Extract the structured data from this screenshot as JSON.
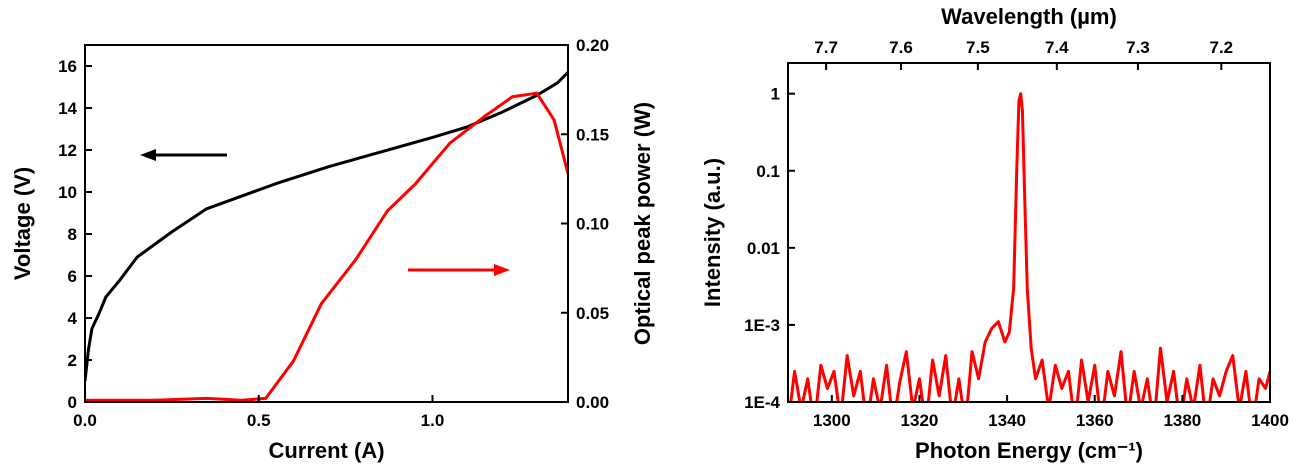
{
  "chart_data": [
    {
      "type": "line",
      "xlabel": "Current (A)",
      "ylabel": "Voltage (V)",
      "y2label": "Optical peak power (W)",
      "xlim": [
        0,
        1.39
      ],
      "xticks": [
        {
          "value": 0,
          "label": "0.0"
        },
        {
          "value": 0.5,
          "label": "0.5"
        },
        {
          "value": 1,
          "label": "1.0"
        }
      ],
      "ylim": [
        0,
        17
      ],
      "yticks": [
        0,
        2,
        4,
        6,
        8,
        10,
        12,
        14,
        16
      ],
      "y2lim": [
        0,
        0.2
      ],
      "y2ticks": [
        {
          "value": 0,
          "label": "0.00"
        },
        {
          "value": 0.05,
          "label": "0.05"
        },
        {
          "value": 0.1,
          "label": "0.10"
        },
        {
          "value": 0.15,
          "label": "0.15"
        },
        {
          "value": 0.2,
          "label": "0.20"
        }
      ],
      "series": [
        {
          "color": "#000000",
          "x": [
            0,
            0.01,
            0.02,
            0.04,
            0.06,
            0.1,
            0.15,
            0.2,
            0.25,
            0.35,
            0.45,
            0.55,
            0.7,
            0.85,
            1.0,
            1.1,
            1.2,
            1.3,
            1.36,
            1.39
          ],
          "values": [
            1,
            2.5,
            3.5,
            4.2,
            5,
            5.8,
            6.9,
            7.5,
            8.1,
            9.2,
            9.8,
            10.4,
            11.2,
            11.9,
            12.6,
            13.1,
            13.8,
            14.6,
            15.2,
            15.7
          ]
        },
        {
          "color": "#ff0000",
          "axis": "y2",
          "x": [
            0,
            0.2,
            0.35,
            0.45,
            0.52,
            0.6,
            0.68,
            0.78,
            0.87,
            0.95,
            1.05,
            1.15,
            1.23,
            1.3,
            1.35,
            1.39
          ],
          "values": [
            0.001,
            0.001,
            0.002,
            0.001,
            0.002,
            0.023,
            0.055,
            0.08,
            0.107,
            0.122,
            0.145,
            0.16,
            0.171,
            0.173,
            0.158,
            0.128
          ]
        }
      ]
    },
    {
      "type": "line",
      "xlabel": "Photon Energy (cm⁻¹)",
      "ylabel": "Intensity (a.u.)",
      "x2label": "Wavelength (µm)",
      "xlim": [
        1290,
        1400
      ],
      "xticks": [
        1300,
        1320,
        1340,
        1360,
        1380,
        1400
      ],
      "x2ticks": [
        7.7,
        7.6,
        7.5,
        7.4,
        7.3,
        7.2
      ],
      "yscale": "log",
      "ylim": [
        0.0001,
        2.5
      ],
      "yticks": [
        {
          "value": 0.0001,
          "label": "1E-4"
        },
        {
          "value": 0.001,
          "label": "1E-3"
        },
        0.01,
        0.1,
        1
      ],
      "series": [
        {
          "color": "#ff0000",
          "x": [
            1290,
            1291.5,
            1293,
            1294.5,
            1296,
            1297.5,
            1299,
            1300.5,
            1302,
            1303.5,
            1305,
            1306.5,
            1308,
            1309.5,
            1311,
            1312.5,
            1314,
            1315.5,
            1317,
            1318.5,
            1320,
            1321.5,
            1323,
            1324.5,
            1326,
            1327.5,
            1329,
            1330.5,
            1332,
            1333.5,
            1335,
            1336.5,
            1338,
            1339.5,
            1340.5,
            1341.5,
            1342.2,
            1342.7,
            1343.1,
            1343.5,
            1344,
            1344.6,
            1345.5,
            1346.5,
            1348,
            1349.5,
            1351,
            1352.5,
            1354,
            1355.5,
            1357,
            1358.5,
            1360,
            1361.5,
            1363,
            1364.5,
            1366,
            1367.5,
            1369,
            1370.5,
            1372,
            1373.5,
            1375,
            1376.5,
            1378,
            1379.5,
            1381,
            1382.5,
            1384,
            1385.5,
            1387,
            1388.5,
            1390,
            1391.5,
            1393,
            1394.5,
            1396,
            1397.5,
            1399,
            1400
          ],
          "values": [
            5e-05,
            0.00025,
            8e-05,
            0.0002,
            5e-05,
            0.0003,
            0.00015,
            0.00025,
            6e-05,
            0.0004,
            0.00012,
            0.00025,
            5e-05,
            0.0002,
            8e-05,
            0.0003,
            5e-05,
            0.00018,
            0.00045,
            8e-05,
            0.0002,
            5e-05,
            0.00035,
            0.00012,
            0.0004,
            6e-05,
            0.0002,
            5e-05,
            0.00045,
            0.0002,
            0.0006,
            0.0009,
            0.0011,
            0.0006,
            0.0008,
            0.003,
            0.1,
            0.8,
            1,
            0.6,
            0.05,
            0.003,
            0.0005,
            0.0002,
            0.00035,
            8e-05,
            0.0003,
            0.00015,
            0.00025,
            5e-05,
            0.00035,
            0.0001,
            0.0003,
            5e-05,
            0.00025,
            0.00012,
            0.00045,
            6e-05,
            0.00025,
            8e-05,
            0.0002,
            5e-05,
            0.0005,
            0.0001,
            0.00025,
            5e-05,
            0.0002,
            8e-05,
            0.0003,
            5e-05,
            0.0002,
            0.00012,
            0.00025,
            0.0004,
            8e-05,
            0.00025,
            5e-05,
            0.0002,
            0.00015,
            0.00025
          ]
        }
      ]
    }
  ]
}
